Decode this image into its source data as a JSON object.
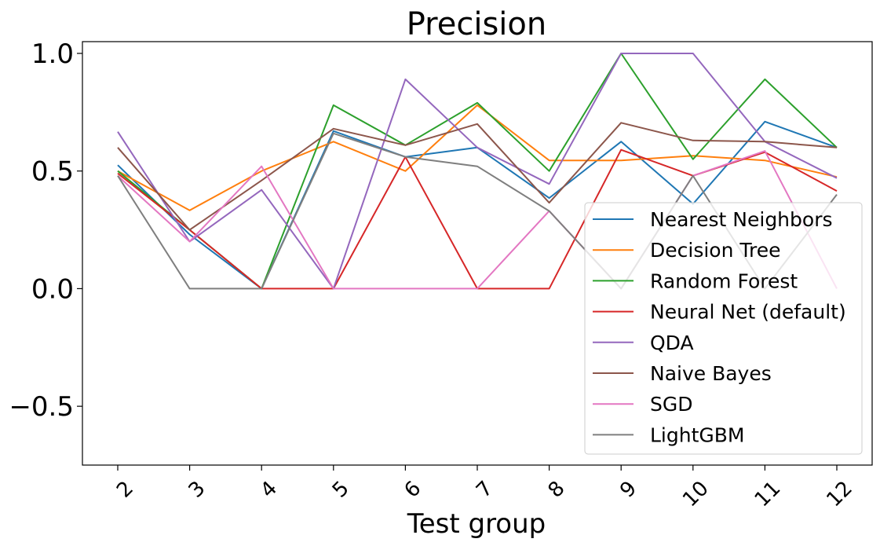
{
  "chart_data": {
    "type": "line",
    "title": "Precision",
    "xlabel": "Test group",
    "ylabel": "",
    "x": [
      "2",
      "3",
      "4",
      "5",
      "6",
      "7",
      "8",
      "9",
      "10",
      "11",
      "12"
    ],
    "ylim": [
      -0.75,
      1.05
    ],
    "yticks": [
      -0.5,
      0.0,
      0.5,
      1.0
    ],
    "ytick_labels": [
      "−0.5",
      "0.0",
      "0.5",
      "1.0"
    ],
    "grid": false,
    "legend_position": "lower right",
    "series": [
      {
        "name": "Nearest Neighbors",
        "color": "#1f77b4",
        "values": [
          0.525,
          0.23,
          0.0,
          0.67,
          0.56,
          0.6,
          0.385,
          0.625,
          0.36,
          0.71,
          0.6
        ]
      },
      {
        "name": "Decision Tree",
        "color": "#ff7f0e",
        "values": [
          0.5,
          0.333,
          0.5,
          0.625,
          0.5,
          0.78,
          0.545,
          0.545,
          0.565,
          0.545,
          0.475
        ]
      },
      {
        "name": "Random Forest",
        "color": "#2ca02c",
        "values": [
          0.5,
          0.25,
          0.0,
          0.78,
          0.61,
          0.79,
          0.5,
          1.0,
          0.55,
          0.89,
          0.6
        ]
      },
      {
        "name": "Neural Net (default)",
        "color": "#d62728",
        "values": [
          0.49,
          0.25,
          0.0,
          0.0,
          0.56,
          0.0,
          0.0,
          0.59,
          0.48,
          0.58,
          0.415
        ]
      },
      {
        "name": "QDA",
        "color": "#9467bd",
        "values": [
          0.667,
          0.2,
          0.42,
          0.0,
          0.89,
          0.6,
          0.445,
          1.0,
          1.0,
          0.625,
          0.47
        ]
      },
      {
        "name": "Naive Bayes",
        "color": "#8c564b",
        "values": [
          0.6,
          0.25,
          0.46,
          0.68,
          0.61,
          0.7,
          0.365,
          0.705,
          0.63,
          0.625,
          0.6
        ]
      },
      {
        "name": "SGD",
        "color": "#e377c2",
        "values": [
          0.48,
          0.2,
          0.52,
          0.0,
          0.0,
          0.0,
          0.33,
          0.0,
          0.48,
          0.585,
          0.0
        ]
      },
      {
        "name": "LightGBM",
        "color": "#7f7f7f",
        "values": [
          0.48,
          0.0,
          0.0,
          0.66,
          0.56,
          0.52,
          0.33,
          0.0,
          0.48,
          0.0,
          0.4
        ]
      }
    ]
  }
}
